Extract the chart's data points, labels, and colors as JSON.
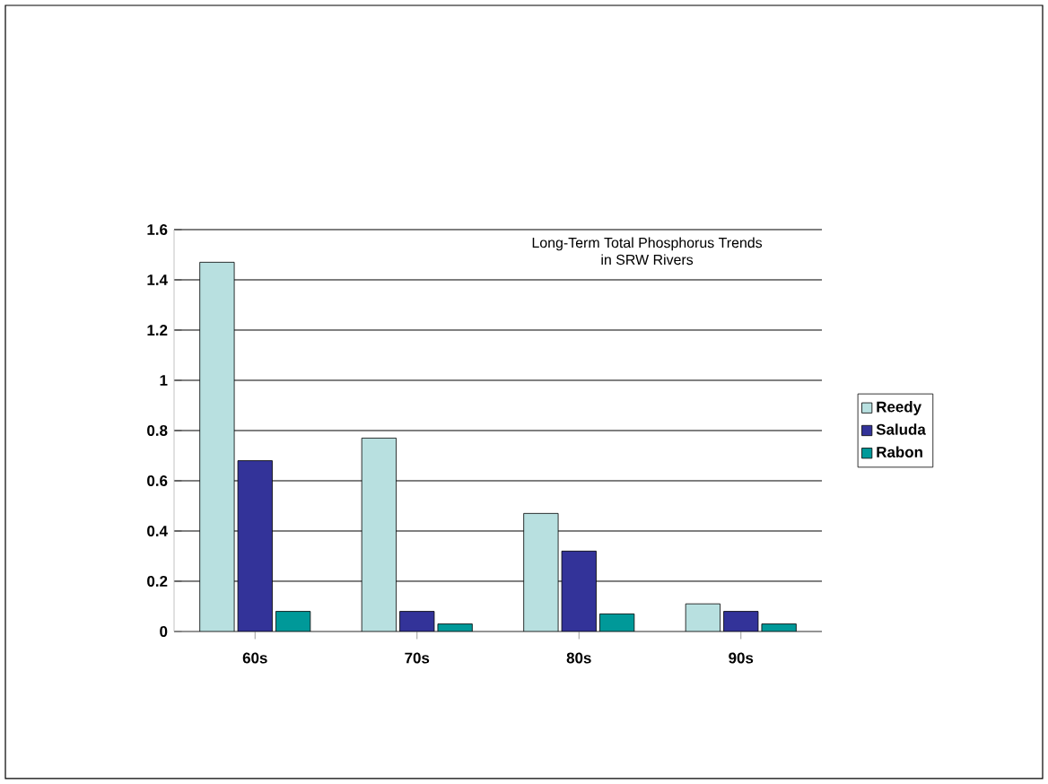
{
  "chart_data": {
    "type": "bar",
    "title": "Long-Term Total Phosphorus Trends\nin SRW Rivers",
    "categories": [
      "60s",
      "70s",
      "80s",
      "90s"
    ],
    "series": [
      {
        "name": "Reedy",
        "color": "#b8e0e0",
        "values": [
          1.47,
          0.77,
          0.47,
          0.11
        ]
      },
      {
        "name": "Saluda",
        "color": "#333399",
        "values": [
          0.68,
          0.08,
          0.32,
          0.08
        ]
      },
      {
        "name": "Rabon",
        "color": "#009999",
        "values": [
          0.08,
          0.03,
          0.07,
          0.03
        ]
      }
    ],
    "ylim": [
      0,
      1.6
    ],
    "yticks": [
      0,
      0.2,
      0.4,
      0.6,
      0.8,
      1,
      1.2,
      1.4,
      1.6
    ],
    "grid": "y",
    "legend": "right"
  }
}
